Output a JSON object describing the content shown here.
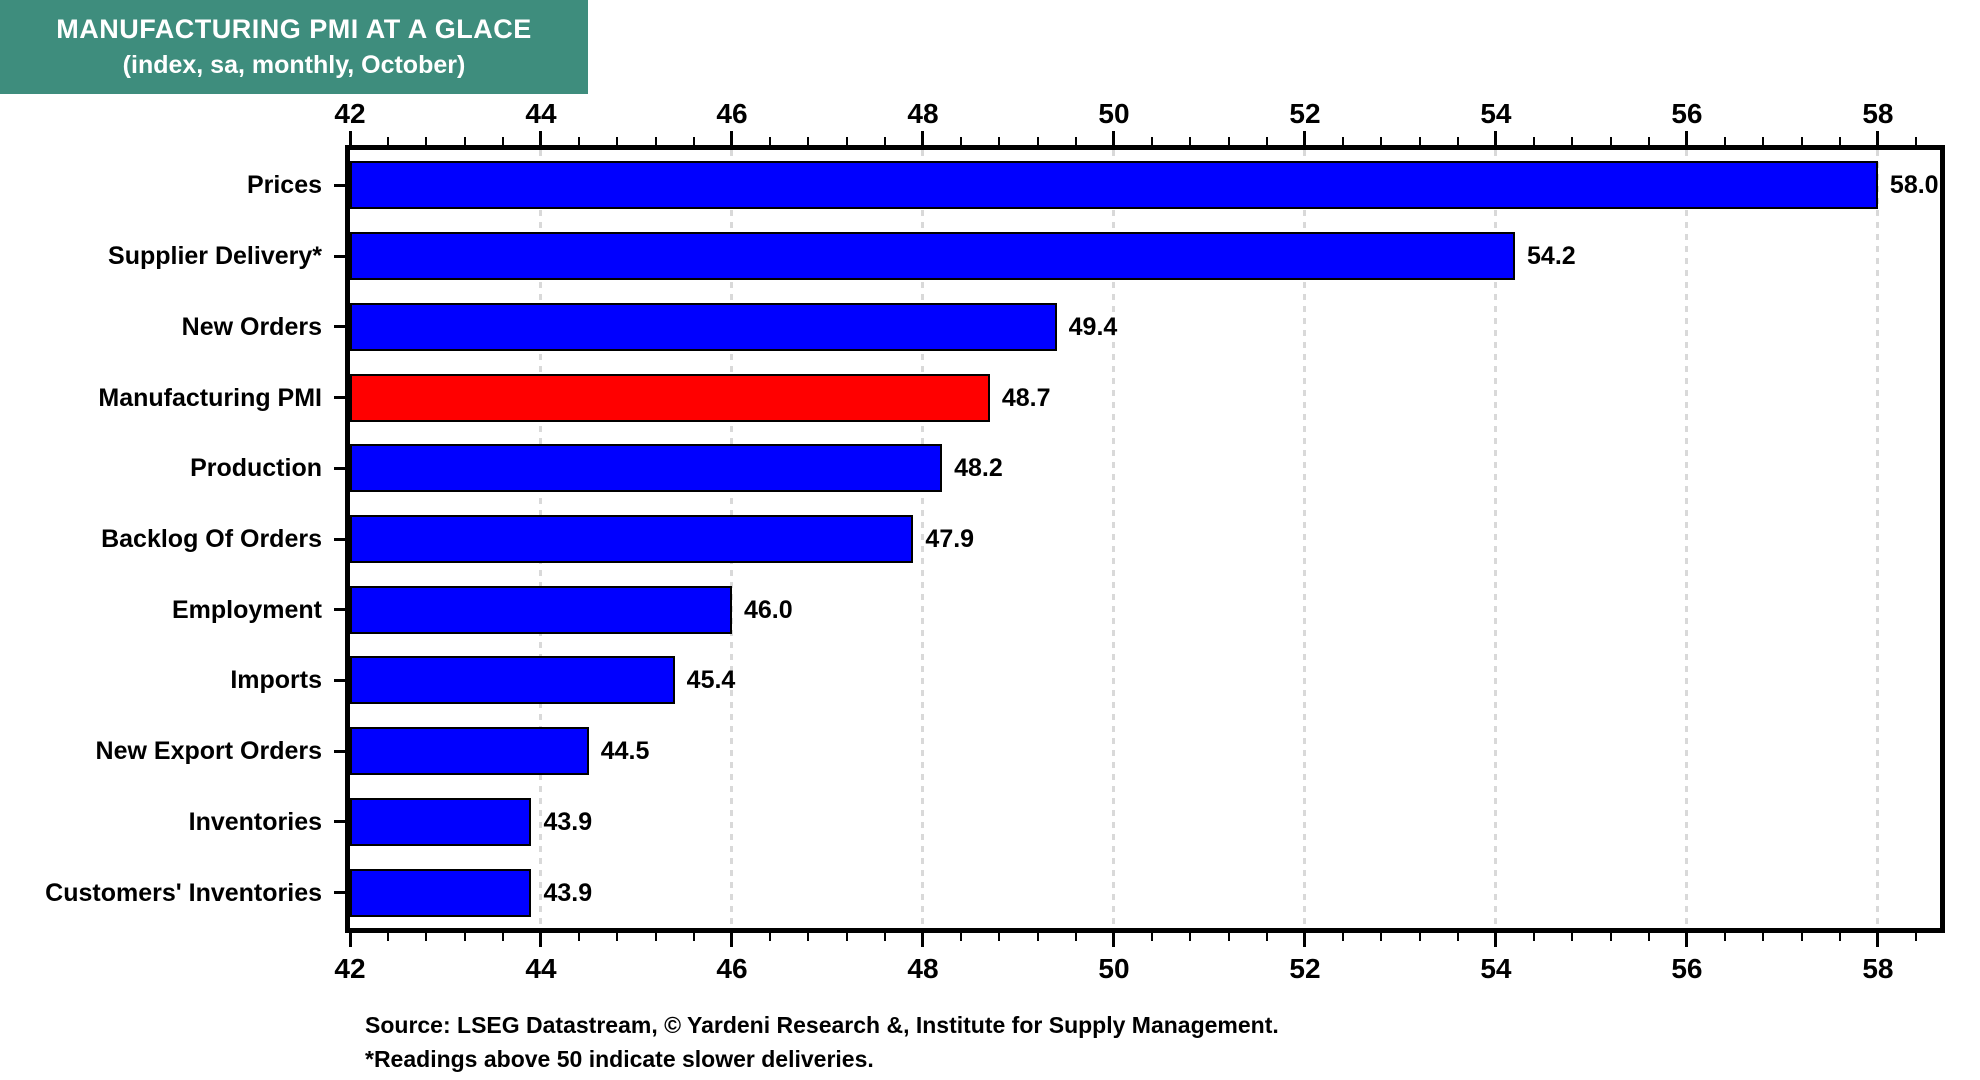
{
  "header": {
    "title": "MANUFACTURING PMI AT A GLACE",
    "subtitle": "(index, sa, monthly, October)",
    "bg_color": "#3E8D7D",
    "text_color": "#FFFFFF"
  },
  "chart_data": {
    "type": "bar",
    "orientation": "horizontal",
    "title": "MANUFACTURING PMI AT A GLACE (index, sa, monthly, October)",
    "categories": [
      "Prices",
      "Supplier Delivery*",
      "New Orders",
      "Manufacturing PMI",
      "Production",
      "Backlog Of Orders",
      "Employment",
      "Imports",
      "New Export Orders",
      "Inventories",
      "Customers' Inventories"
    ],
    "values": [
      58.0,
      54.2,
      49.4,
      48.7,
      48.2,
      47.9,
      46.0,
      45.4,
      44.5,
      43.9,
      43.9
    ],
    "value_labels": [
      "58.0",
      "54.2",
      "49.4",
      "48.7",
      "48.2",
      "47.9",
      "46.0",
      "45.4",
      "44.5",
      "43.9",
      "43.9"
    ],
    "highlight_index": 3,
    "bar_color_default": "#0000FF",
    "bar_color_highlight": "#FF0000",
    "xlim": [
      42,
      58.65
    ],
    "x_major_ticks": [
      42,
      44,
      46,
      48,
      50,
      52,
      54,
      56,
      58
    ],
    "x_major_tick_labels": [
      "42",
      "44",
      "46",
      "48",
      "50",
      "52",
      "54",
      "56",
      "58"
    ],
    "minor_tick_step": 0.4,
    "grid": "vertical-dashed",
    "gridline_color": "#D9D9D9",
    "axis_positions": [
      "top",
      "bottom"
    ],
    "legend": "none"
  },
  "footer": {
    "source": "Source: LSEG Datastream, © Yardeni Research &, Institute for Supply Management.",
    "footnote": "*Readings above 50 indicate slower deliveries."
  }
}
